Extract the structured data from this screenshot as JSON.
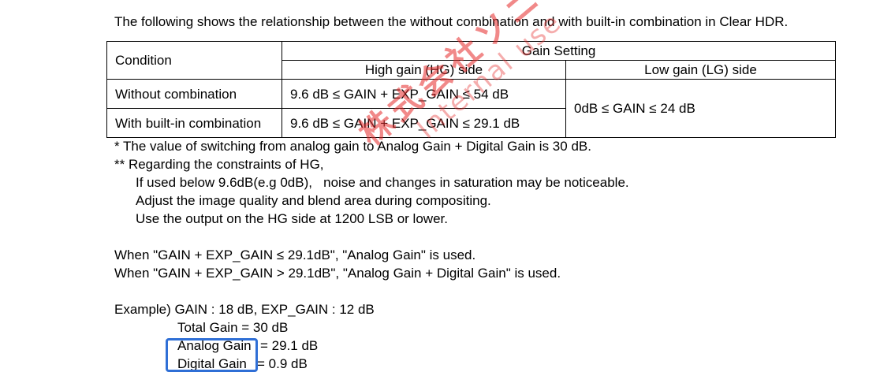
{
  "intro": "The following shows the relationship between the without combination and with built-in combination in Clear HDR.",
  "table": {
    "condition_header": "Condition",
    "gain_setting_header": "Gain Setting",
    "hg_header": "High gain (HG) side",
    "lg_header": "Low gain (LG) side",
    "rows": [
      {
        "condition": "Without combination",
        "hg": "9.6 dB ≤ GAIN + EXP_GAIN ≤ 54 dB"
      },
      {
        "condition": "With built-in combination",
        "hg": "9.6 dB ≤ GAIN + EXP_GAIN ≤ 29.1 dB"
      }
    ],
    "lg_value": "0dB ≤ GAIN ≤ 24 dB"
  },
  "notes": {
    "note1": "* The value of switching from analog gain to Analog Gain + Digital Gain is 30 dB.",
    "note2": "** Regarding the constraints of HG,",
    "note2_lines": [
      "If used below 9.6dB(e.g 0dB),   noise and changes in saturation may be noticeable.",
      "Adjust the image quality and blend area during compositing.",
      "Use the output on the HG side at 1200 LSB or lower."
    ]
  },
  "rules": [
    "When \"GAIN + EXP_GAIN ≤ 29.1dB\", \"Analog Gain\" is used.",
    "When \"GAIN + EXP_GAIN > 29.1dB\", \"Analog Gain + Digital Gain\" is used."
  ],
  "example": {
    "heading": "Example) GAIN : 18 dB, EXP_GAIN : 12 dB",
    "total": "Total Gain = 30 dB",
    "analog_label": "Analog Gain",
    "analog_value": "= 29.1 dB",
    "digital_label": "Digital Gain",
    "digital_value": "= 0.9 dB"
  },
  "watermark": {
    "line1": "株式会社ソニ",
    "line2": "Internal use"
  },
  "colors": {
    "highlight_box": "#2f6fd6",
    "watermark": "#e62828"
  }
}
